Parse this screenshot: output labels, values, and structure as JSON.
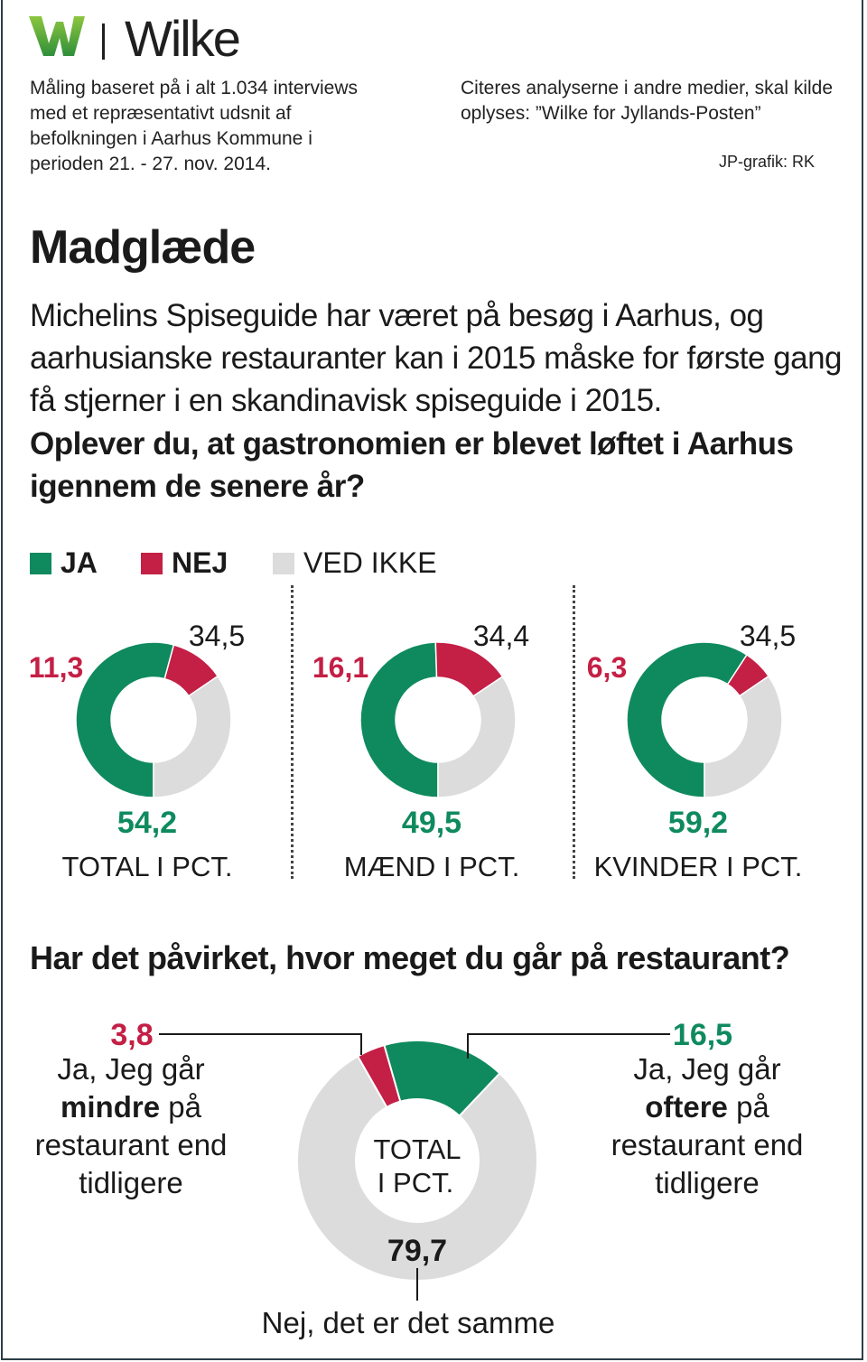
{
  "brand": {
    "name": "Wilke"
  },
  "meta": {
    "method": "Måling baseret på i alt 1.034 interviews med et repræsentativt udsnit af befolkningen i Aarhus Kommune i perioden 21. - 27. nov. 2014.",
    "citation": "Citeres analyserne i andre medier, skal kilde oplyses: ”Wilke for Jyllands-Posten”",
    "credit": "JP-grafik: RK"
  },
  "title": "Madglæde",
  "intro": "Michelins Spiseguide har været på besøg i Aarhus, og aarhusianske restauranter kan i 2015 måske for første gang få stjerner i en skandinavisk spiseguide i 2015.",
  "question1": "Oplever du, at gastronomien er blevet løftet i Aarhus igennem de senere år?",
  "colors": {
    "ja": "#0f8a5f",
    "nej": "#c41f45",
    "ved_ikke": "#dcdcdc"
  },
  "legend": [
    {
      "key": "ja",
      "label": "JA"
    },
    {
      "key": "nej",
      "label": "NEJ"
    },
    {
      "key": "ved_ikke",
      "label": "VED IKKE"
    }
  ],
  "question2": "Har det påvirket, hvor meget du går på restaurant?",
  "chart_data": [
    {
      "type": "pie",
      "title": "TOTAL I PCT.",
      "categories": [
        "JA",
        "NEJ",
        "VED IKKE"
      ],
      "values": [
        54.2,
        11.3,
        34.5
      ],
      "labels": [
        "54,2",
        "11,3",
        "34,5"
      ]
    },
    {
      "type": "pie",
      "title": "MÆND I PCT.",
      "categories": [
        "JA",
        "NEJ",
        "VED IKKE"
      ],
      "values": [
        49.5,
        16.1,
        34.4
      ],
      "labels": [
        "49,5",
        "16,1",
        "34,4"
      ]
    },
    {
      "type": "pie",
      "title": "KVINDER I PCT.",
      "categories": [
        "JA",
        "NEJ",
        "VED IKKE"
      ],
      "values": [
        59.2,
        6.3,
        34.5
      ],
      "labels": [
        "59,2",
        "6,3",
        "34,5"
      ]
    },
    {
      "type": "pie",
      "title": "TOTAL I PCT.",
      "categories": [
        "Ja, Jeg går oftere på restaurant end tidligere",
        "Ja, Jeg går mindre på restaurant end tidligere",
        "Nej, det er det samme"
      ],
      "values": [
        16.5,
        3.8,
        79.7
      ],
      "labels": [
        "16,5",
        "3,8",
        "79,7"
      ]
    }
  ],
  "chart2_text": {
    "center_line1": "TOTAL",
    "center_line2": "I PCT.",
    "left_pre": "Ja, Jeg går",
    "left_bold": "mindre",
    "left_post1": "på",
    "left_post2": "restaurant end",
    "left_post3": "tidligere",
    "right_pre": "Ja, Jeg går",
    "right_bold": "oftere",
    "right_post1": "på",
    "right_post2": "restaurant end",
    "right_post3": "tidligere",
    "bottom": "Nej, det er det samme"
  }
}
